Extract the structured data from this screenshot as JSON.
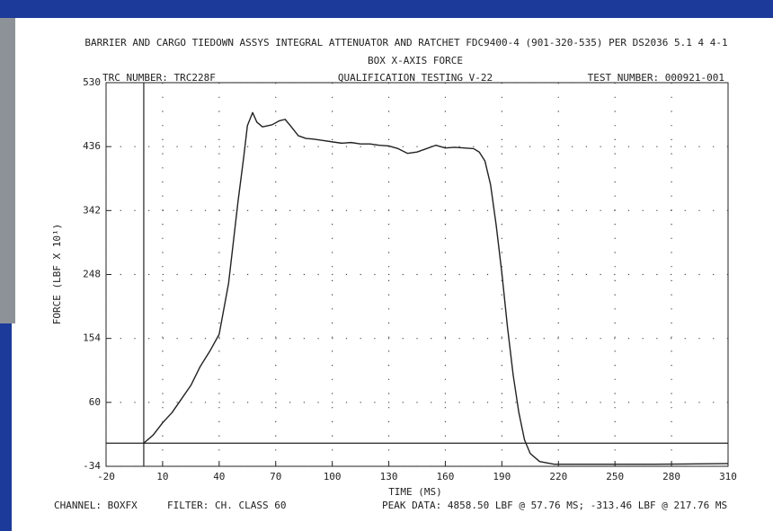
{
  "chart_data": {
    "type": "line",
    "title": "BARRIER AND CARGO TIEDOWN ASSYS INTEGRAL ATTENUATOR AND RATCHET FDC9400-4 (901-320-535) PER DS2036 5.1 4 4-1",
    "subtitle": "BOX X-AXIS FORCE",
    "header_left": "TRC NUMBER: TRC228F",
    "header_center": "QUALIFICATION TESTING V-22",
    "header_right": "TEST NUMBER: 000921-001",
    "ylabel": "FORCE (LBF X 10¹)",
    "xlabel": "TIME (MS)",
    "footer_channel": "CHANNEL: BOXFX",
    "footer_filter": "FILTER: CH. CLASS 60",
    "footer_peak": "PEAK DATA: 4858.50 LBF @ 57.76 MS; -313.46 LBF @ 217.76 MS",
    "color": "#222222",
    "grid": true,
    "x": [
      0,
      5,
      10,
      15,
      20,
      25,
      30,
      35,
      40,
      45,
      50,
      53,
      55,
      57.76,
      60,
      63,
      68,
      72,
      75,
      78,
      82,
      86,
      90,
      95,
      100,
      105,
      110,
      115,
      120,
      125,
      130,
      135,
      140,
      145,
      150,
      155,
      160,
      165,
      170,
      175,
      178,
      181,
      184,
      187,
      190,
      193,
      196,
      199,
      202,
      205,
      210,
      217.76,
      240,
      270,
      310
    ],
    "values": [
      0,
      12,
      30,
      45,
      65,
      85,
      113,
      135,
      160,
      235,
      355,
      420,
      467,
      486,
      472,
      465,
      468,
      474,
      476,
      466,
      452,
      448,
      447,
      445,
      443,
      441,
      442,
      440,
      440,
      438,
      437,
      433,
      426,
      428,
      433,
      438,
      434,
      435,
      434,
      433,
      428,
      415,
      380,
      320,
      250,
      170,
      100,
      45,
      5,
      -15,
      -27,
      -31,
      -31,
      -31,
      -30
    ],
    "xlim": [
      -20,
      310
    ],
    "ylim": [
      -34,
      530
    ],
    "xticks": [
      -20,
      10,
      40,
      70,
      100,
      130,
      160,
      190,
      220,
      250,
      280,
      310
    ],
    "yticks": [
      -34,
      60,
      154,
      248,
      342,
      436,
      530
    ]
  }
}
